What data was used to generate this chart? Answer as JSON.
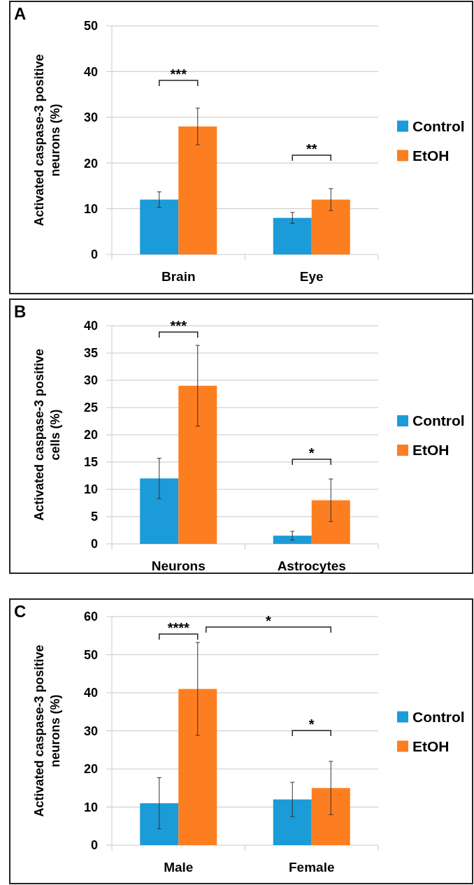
{
  "chart_data": [
    {
      "type": "bar",
      "title": "A",
      "ylabel": "Activated caspase-3 positive neurons (%)",
      "categories": [
        "Brain",
        "Eye"
      ],
      "ylim": [
        0,
        50
      ],
      "yticks": [
        0,
        10,
        20,
        30,
        40,
        50
      ],
      "grid": "y",
      "legend": "right",
      "series": [
        {
          "name": "Control",
          "color": "#1b9bd7",
          "values": [
            12,
            8
          ],
          "errors": [
            1.7,
            1.2
          ]
        },
        {
          "name": "EtOH",
          "color": "#fd7e21",
          "values": [
            28,
            12
          ],
          "errors": [
            4,
            2.4
          ]
        }
      ],
      "annotations": [
        "***",
        "**"
      ]
    },
    {
      "type": "bar",
      "title": "B",
      "ylabel": "Activated caspase-3 positive cells (%)",
      "categories": [
        "Neurons",
        "Astrocytes"
      ],
      "ylim": [
        0,
        40
      ],
      "yticks": [
        0,
        5,
        10,
        15,
        20,
        25,
        30,
        35,
        40
      ],
      "grid": "y",
      "legend": "right",
      "series": [
        {
          "name": "Control",
          "color": "#1b9bd7",
          "values": [
            12,
            1.5
          ],
          "errors": [
            3.7,
            0.8
          ]
        },
        {
          "name": "EtOH",
          "color": "#fd7e21",
          "values": [
            29,
            8
          ],
          "errors": [
            7.4,
            3.9
          ]
        }
      ],
      "annotations": [
        "***",
        "*"
      ]
    },
    {
      "type": "bar",
      "title": "C",
      "ylabel": "Activated caspase-3 positive neurons (%)",
      "categories": [
        "Male",
        "Female"
      ],
      "ylim": [
        0,
        60
      ],
      "yticks": [
        0,
        10,
        20,
        30,
        40,
        50,
        60
      ],
      "grid": "y",
      "legend": "right",
      "series": [
        {
          "name": "Control",
          "color": "#1b9bd7",
          "values": [
            11,
            12
          ],
          "errors": [
            6.7,
            4.5
          ]
        },
        {
          "name": "EtOH",
          "color": "#fd7e21",
          "values": [
            41,
            15
          ],
          "errors": [
            12.2,
            7
          ]
        }
      ],
      "annotations": [
        "****",
        "*",
        "*"
      ]
    }
  ]
}
